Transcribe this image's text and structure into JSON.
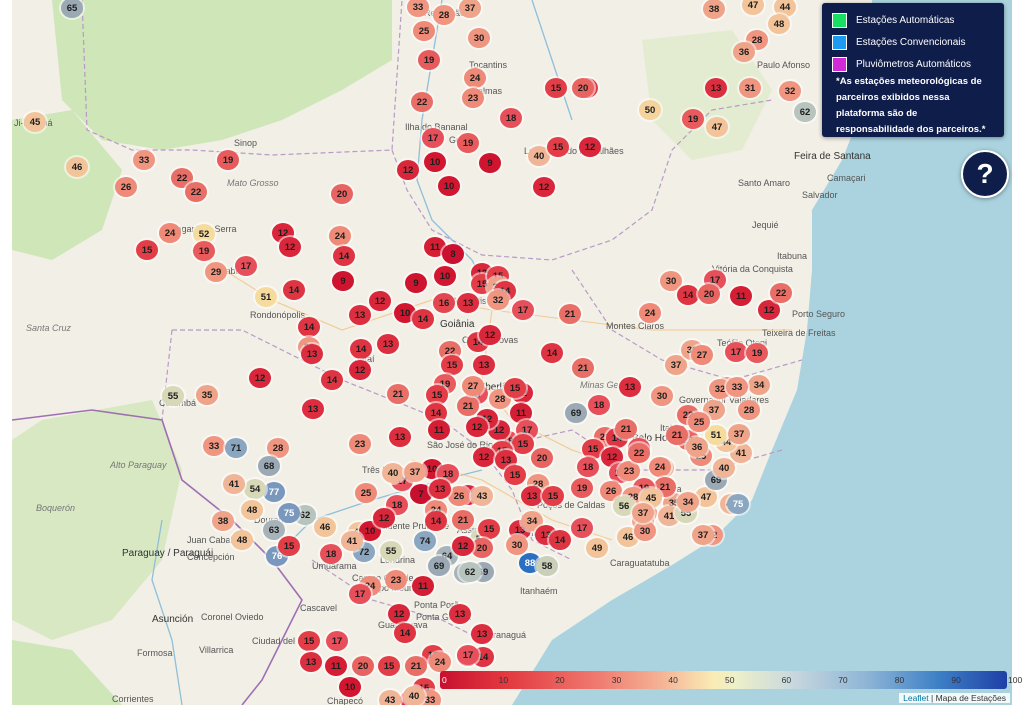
{
  "legend": {
    "items": [
      {
        "label": "Estações Automáticas",
        "color": "#19e062"
      },
      {
        "label": "Estações Convencionais",
        "color": "#1c9bf0"
      },
      {
        "label": "Pluviômetros Automáticos",
        "color": "#d02bd6"
      }
    ],
    "note": "*As estações meteorológicas de parceiros exibidos nessa plataforma são de responsabilidade dos parceiros.*"
  },
  "help_button": {
    "label": "?"
  },
  "color_scale": {
    "ticks": [
      "0",
      "10",
      "20",
      "30",
      "40",
      "50",
      "60",
      "70",
      "80",
      "90",
      "100"
    ]
  },
  "attribution": {
    "leaflet": "Leaflet",
    "separator": " | ",
    "source": "Mapa de Estações"
  },
  "places": [
    "Ji-Paraná",
    "Sinop",
    "Tangará da Serra",
    "Cuiabá",
    "Rondonópolis",
    "Santa Cruz",
    "Corumbá",
    "Alto Paraguay",
    "Boquerón",
    "Paraguay / Paraguái",
    "Concepción",
    "Asunción",
    "Coronel Oviedo",
    "Formosa",
    "Villarrica",
    "Ciudad del Este",
    "Corrientes",
    "Ilha do Bananal",
    "Gurupi",
    "Palmas",
    "Luis Eduardo Magalhães",
    "Feira de Santana",
    "Salvador",
    "Santo Amaro",
    "Camaçari",
    "Jequié",
    "Itabuna",
    "Vitória da Conquista",
    "Montes Claros",
    "Teófilo Otoni",
    "Teixeira de Freitas",
    "Porto Seguro",
    "Governador Valadares",
    "Itabira",
    "Belo Horizonte",
    "Goiânia",
    "Anápolis",
    "Caldas Novas",
    "Uberlândia",
    "Jataí",
    "São José do Rio Preto",
    "Campo Grande",
    "Três Lagoas",
    "Dourados",
    "Ponta Porã",
    "Juan Caballero",
    "Umuarama",
    "Campo Mourão",
    "Cascavel",
    "Guarapuava",
    "Ponta Grossa",
    "Paranaguá",
    "Assis",
    "Londrina",
    "Presidente Prudente",
    "Poços de Caldas",
    "Campinas",
    "Caraguatatuba",
    "Itanhaém",
    "Juiz de Fora",
    "Chapecó",
    "Tocantins",
    "Redenção",
    "Paulo Afonso",
    "Mato Grosso",
    "Minas Gerais"
  ],
  "markers": [
    {
      "v": 65,
      "c": "#9aa9b4"
    },
    {
      "v": 33,
      "c": "#ef9580"
    },
    {
      "v": 28,
      "c": "#ef9580"
    },
    {
      "v": 37,
      "c": "#efa489"
    },
    {
      "v": 25,
      "c": "#ee8a77"
    },
    {
      "v": 30,
      "c": "#ef9580"
    },
    {
      "v": 19,
      "c": "#e85a5c"
    },
    {
      "v": 24,
      "c": "#ee8a77"
    },
    {
      "v": 23,
      "c": "#ee8a77"
    },
    {
      "v": 22,
      "c": "#e86e66"
    },
    {
      "v": 15,
      "c": "#e33e47"
    },
    {
      "v": 18,
      "c": "#e7505a"
    },
    {
      "v": 17,
      "c": "#e7505a"
    },
    {
      "v": 19,
      "c": "#e85a5c"
    },
    {
      "v": 12,
      "c": "#d9263a"
    },
    {
      "v": 10,
      "c": "#d2162f"
    },
    {
      "v": 9,
      "c": "#cf1430"
    },
    {
      "v": 10,
      "c": "#d2162f"
    },
    {
      "v": 40,
      "c": "#f0b596"
    },
    {
      "v": 15,
      "c": "#e33e47"
    },
    {
      "v": 12,
      "c": "#d9263a"
    },
    {
      "v": 12,
      "c": "#d9263a"
    },
    {
      "v": 15,
      "c": "#e33e47"
    },
    {
      "v": 20,
      "c": "#e86460"
    },
    {
      "v": 13,
      "c": "#dd2e3f"
    },
    {
      "v": 31,
      "c": "#ef9580"
    },
    {
      "v": 32,
      "c": "#ef9580"
    },
    {
      "v": 50,
      "c": "#f5d39c"
    },
    {
      "v": 19,
      "c": "#e85a5c"
    },
    {
      "v": 47,
      "c": "#f3c49a"
    },
    {
      "v": 38,
      "c": "#efa489"
    },
    {
      "v": 47,
      "c": "#f3c49a"
    },
    {
      "v": 44,
      "c": "#f3c49a"
    },
    {
      "v": 48,
      "c": "#f3c49a"
    },
    {
      "v": 28,
      "c": "#ef9580"
    },
    {
      "v": 36,
      "c": "#efa489"
    },
    {
      "v": 62,
      "c": "#b7c3bd"
    },
    {
      "v": 45,
      "c": "#f3c49a"
    },
    {
      "v": 46,
      "c": "#f3c49a"
    },
    {
      "v": 33,
      "c": "#ef9580"
    },
    {
      "v": 22,
      "c": "#e86e66"
    },
    {
      "v": 22,
      "c": "#e86e66"
    },
    {
      "v": 26,
      "c": "#ee8a77"
    },
    {
      "v": 19,
      "c": "#e85a5c"
    },
    {
      "v": 20,
      "c": "#e86460"
    },
    {
      "v": 24,
      "c": "#ee8a77"
    },
    {
      "v": 52,
      "c": "#f5dc9e"
    },
    {
      "v": 15,
      "c": "#e33e47"
    },
    {
      "v": 19,
      "c": "#e85a5c"
    },
    {
      "v": 29,
      "c": "#ef9580"
    },
    {
      "v": 17,
      "c": "#e7505a"
    },
    {
      "v": 12,
      "c": "#d9263a"
    },
    {
      "v": 12,
      "c": "#d9263a"
    },
    {
      "v": 14,
      "c": "#df3442"
    },
    {
      "v": 24,
      "c": "#ee8a77"
    },
    {
      "v": 51,
      "c": "#f5dc9e"
    },
    {
      "v": 14,
      "c": "#df3442"
    },
    {
      "v": 9,
      "c": "#cf1430"
    },
    {
      "v": 11,
      "c": "#d51d34"
    },
    {
      "v": 8,
      "c": "#cc1030"
    },
    {
      "v": 12,
      "c": "#d9263a"
    },
    {
      "v": 9,
      "c": "#cf1430"
    },
    {
      "v": 10,
      "c": "#d2162f"
    },
    {
      "v": 13,
      "c": "#dd2e3f"
    },
    {
      "v": 16,
      "c": "#e4464f"
    },
    {
      "v": 13,
      "c": "#dd2e3f"
    },
    {
      "v": 12,
      "c": "#d9263a"
    },
    {
      "v": 10,
      "c": "#d2162f"
    },
    {
      "v": 15,
      "c": "#e33e47"
    },
    {
      "v": 15,
      "c": "#e33e47"
    },
    {
      "v": 36,
      "c": "#efa489"
    },
    {
      "v": 14,
      "c": "#df3442"
    },
    {
      "v": 14,
      "c": "#df3442"
    },
    {
      "v": 13,
      "c": "#dd2e3f"
    },
    {
      "v": 32,
      "c": "#ef9580"
    },
    {
      "v": 17,
      "c": "#e7505a"
    },
    {
      "v": 14,
      "c": "#df3442"
    },
    {
      "v": 14,
      "c": "#df3442"
    },
    {
      "v": 14,
      "c": "#df3442"
    },
    {
      "v": 12,
      "c": "#d9263a"
    },
    {
      "v": 22,
      "c": "#e86e66"
    },
    {
      "v": 15,
      "c": "#e33e47"
    },
    {
      "v": 28,
      "c": "#ef9580"
    },
    {
      "v": 19,
      "c": "#e85a5c"
    },
    {
      "v": 13,
      "c": "#dd2e3f"
    },
    {
      "v": 12,
      "c": "#d9263a"
    },
    {
      "v": 13,
      "c": "#dd2e3f"
    },
    {
      "v": 17,
      "c": "#e7505a"
    },
    {
      "v": 21,
      "c": "#e86e66"
    },
    {
      "v": 12,
      "c": "#d9263a"
    },
    {
      "v": 14,
      "c": "#df3442"
    },
    {
      "v": 21,
      "c": "#e86e66"
    },
    {
      "v": 15,
      "c": "#e33e47"
    },
    {
      "v": 14,
      "c": "#df3442"
    },
    {
      "v": 27,
      "c": "#ee8a77"
    },
    {
      "v": 28,
      "c": "#ef9580"
    },
    {
      "v": 15,
      "c": "#e33e47"
    },
    {
      "v": 11,
      "c": "#d51d34"
    },
    {
      "v": 18,
      "c": "#e7505a"
    },
    {
      "v": 12,
      "c": "#d9263a"
    },
    {
      "v": 13,
      "c": "#dd2e3f"
    },
    {
      "v": 12,
      "c": "#d9263a"
    },
    {
      "v": 12,
      "c": "#d9263a"
    },
    {
      "v": 17,
      "c": "#e7505a"
    },
    {
      "v": 15,
      "c": "#e33e47"
    },
    {
      "v": 15,
      "c": "#e33e47"
    },
    {
      "v": 11,
      "c": "#d51d34"
    },
    {
      "v": 12,
      "c": "#d9263a"
    },
    {
      "v": 23,
      "c": "#ee8a77"
    },
    {
      "v": 13,
      "c": "#dd2e3f"
    },
    {
      "v": 12,
      "c": "#d9263a"
    },
    {
      "v": 13,
      "c": "#dd2e3f"
    },
    {
      "v": 12,
      "c": "#d9263a"
    },
    {
      "v": 15,
      "c": "#e33e47"
    },
    {
      "v": 10,
      "c": "#d2162f"
    },
    {
      "v": 17,
      "c": "#e7505a"
    },
    {
      "v": 18,
      "c": "#e7505a"
    },
    {
      "v": 7,
      "c": "#c80f2d"
    },
    {
      "v": 24,
      "c": "#ee8a77"
    },
    {
      "v": 26,
      "c": "#ee8a77"
    },
    {
      "v": 43,
      "c": "#f0b596"
    },
    {
      "v": 74,
      "c": "#8aa6c0"
    },
    {
      "v": 64,
      "c": "#a6b3b8"
    },
    {
      "v": 63,
      "c": "#a6b3b8"
    },
    {
      "v": 69,
      "c": "#9aa9b4"
    },
    {
      "v": 88,
      "c": "#2a6fc0"
    },
    {
      "v": 58,
      "c": "#c9cfb9"
    },
    {
      "v": 49,
      "c": "#f3c49a"
    },
    {
      "v": 46,
      "c": "#f3c49a"
    },
    {
      "v": 35,
      "c": "#efa489"
    },
    {
      "v": 32,
      "c": "#ef9580"
    },
    {
      "v": 42,
      "c": "#f0b596"
    },
    {
      "v": 47,
      "c": "#f3c49a"
    },
    {
      "v": 75,
      "c": "#8aa6c0"
    },
    {
      "v": 69,
      "c": "#9aa9b4"
    },
    {
      "v": 41,
      "c": "#f0b596"
    },
    {
      "v": 44,
      "c": "#f3c49a"
    },
    {
      "v": 51,
      "c": "#f5dc9e"
    },
    {
      "v": 37,
      "c": "#efa489"
    },
    {
      "v": 28,
      "c": "#ef9580"
    },
    {
      "v": 34,
      "c": "#efa489"
    },
    {
      "v": 29,
      "c": "#ef9580"
    },
    {
      "v": 32,
      "c": "#ef9580"
    },
    {
      "v": 30,
      "c": "#ef9580"
    },
    {
      "v": 22,
      "c": "#e86e66"
    },
    {
      "v": 20,
      "c": "#e86460"
    },
    {
      "v": 25,
      "c": "#ee8a77"
    },
    {
      "v": 41,
      "c": "#f0b596"
    },
    {
      "v": 25,
      "c": "#ee8a77"
    },
    {
      "v": 40,
      "c": "#f0b596"
    },
    {
      "v": 37,
      "c": "#efa489"
    },
    {
      "v": 36,
      "c": "#efa489"
    },
    {
      "v": 33,
      "c": "#ef9580"
    },
    {
      "v": 37,
      "c": "#efa489"
    },
    {
      "v": 39,
      "c": "#efa489"
    },
    {
      "v": 27,
      "c": "#ee8a77"
    },
    {
      "v": 30,
      "c": "#ef9580"
    },
    {
      "v": 14,
      "c": "#df3442"
    },
    {
      "v": 17,
      "c": "#e7505a"
    },
    {
      "v": 11,
      "c": "#d51d34"
    },
    {
      "v": 12,
      "c": "#d9263a"
    },
    {
      "v": 17,
      "c": "#e7505a"
    },
    {
      "v": 22,
      "c": "#e86e66"
    },
    {
      "v": 20,
      "c": "#e86460"
    },
    {
      "v": 19,
      "c": "#e85a5c"
    },
    {
      "v": 24,
      "c": "#ee8a77"
    },
    {
      "v": 21,
      "c": "#e86e66"
    },
    {
      "v": 14,
      "c": "#df3442"
    },
    {
      "v": 21,
      "c": "#e86e66"
    },
    {
      "v": 13,
      "c": "#dd2e3f"
    },
    {
      "v": 18,
      "c": "#e7505a"
    },
    {
      "v": 69,
      "c": "#9aa9b4"
    },
    {
      "v": 21,
      "c": "#e86e66"
    },
    {
      "v": 14,
      "c": "#df3442"
    },
    {
      "v": 15,
      "c": "#e33e47"
    },
    {
      "v": 17,
      "c": "#e7505a"
    },
    {
      "v": 21,
      "c": "#e86e66"
    },
    {
      "v": 12,
      "c": "#d9263a"
    },
    {
      "v": 28,
      "c": "#ef9580"
    },
    {
      "v": 19,
      "c": "#e85a5c"
    },
    {
      "v": 20,
      "c": "#e86460"
    },
    {
      "v": 21,
      "c": "#e86e66"
    },
    {
      "v": 18,
      "c": "#e7505a"
    },
    {
      "v": 18,
      "c": "#e7505a"
    },
    {
      "v": 24,
      "c": "#ee8a77"
    },
    {
      "v": 23,
      "c": "#ee8a77"
    },
    {
      "v": 22,
      "c": "#e86e66"
    },
    {
      "v": 21,
      "c": "#e86e66"
    },
    {
      "v": 19,
      "c": "#e85a5c"
    },
    {
      "v": 26,
      "c": "#ee8a77"
    },
    {
      "v": 28,
      "c": "#ef9580"
    },
    {
      "v": 24,
      "c": "#ee8a77"
    },
    {
      "v": 45,
      "c": "#f3c49a"
    },
    {
      "v": 39,
      "c": "#efa489"
    },
    {
      "v": 41,
      "c": "#f0b596"
    },
    {
      "v": 30,
      "c": "#ef9580"
    },
    {
      "v": 56,
      "c": "#d6d8b7"
    },
    {
      "v": 55,
      "c": "#d6d8b7"
    },
    {
      "v": 37,
      "c": "#efa489"
    },
    {
      "v": 34,
      "c": "#efa489"
    },
    {
      "v": 37,
      "c": "#efa489"
    },
    {
      "v": 35,
      "c": "#efa489"
    },
    {
      "v": 55,
      "c": "#d6d8b7"
    },
    {
      "v": 33,
      "c": "#ef9580"
    },
    {
      "v": 71,
      "c": "#8aa6c0"
    },
    {
      "v": 28,
      "c": "#ef9580"
    },
    {
      "v": 68,
      "c": "#9aa9b4"
    },
    {
      "v": 77,
      "c": "#7a98bd"
    },
    {
      "v": 54,
      "c": "#d6d8b7"
    },
    {
      "v": 41,
      "c": "#f0b596"
    },
    {
      "v": 63,
      "c": "#a6b3b8"
    },
    {
      "v": 62,
      "c": "#b7c3bd"
    },
    {
      "v": 46,
      "c": "#f3c49a"
    },
    {
      "v": 47,
      "c": "#f3c49a"
    },
    {
      "v": 72,
      "c": "#8aa6c0"
    },
    {
      "v": 55,
      "c": "#d6d8b7"
    },
    {
      "v": 76,
      "c": "#7a98bd"
    },
    {
      "v": 75,
      "c": "#7a98bd"
    },
    {
      "v": 48,
      "c": "#f3c49a"
    },
    {
      "v": 38,
      "c": "#efa489"
    },
    {
      "v": 48,
      "c": "#f3c49a"
    },
    {
      "v": 15,
      "c": "#e33e47"
    },
    {
      "v": 18,
      "c": "#e7505a"
    },
    {
      "v": 10,
      "c": "#d2162f"
    },
    {
      "v": 24,
      "c": "#ee8a77"
    },
    {
      "v": 17,
      "c": "#e7505a"
    },
    {
      "v": 11,
      "c": "#d51d34"
    },
    {
      "v": 12,
      "c": "#d9263a"
    },
    {
      "v": 14,
      "c": "#df3442"
    },
    {
      "v": 15,
      "c": "#e33e47"
    },
    {
      "v": 13,
      "c": "#dd2e3f"
    },
    {
      "v": 13,
      "c": "#dd2e3f"
    },
    {
      "v": 12,
      "c": "#d9263a"
    },
    {
      "v": 14,
      "c": "#df3442"
    },
    {
      "v": 15,
      "c": "#e33e47"
    },
    {
      "v": 17,
      "c": "#e7505a"
    },
    {
      "v": 13,
      "c": "#dd2e3f"
    },
    {
      "v": 11,
      "c": "#d51d34"
    },
    {
      "v": 20,
      "c": "#e86460"
    },
    {
      "v": 15,
      "c": "#e33e47"
    },
    {
      "v": 21,
      "c": "#e86e66"
    },
    {
      "v": 24,
      "c": "#ee8a77"
    },
    {
      "v": 17,
      "c": "#e7505a"
    },
    {
      "v": 10,
      "c": "#d2162f"
    },
    {
      "v": 15,
      "c": "#e33e47"
    },
    {
      "v": 13,
      "c": "#dd2e3f"
    },
    {
      "v": 33,
      "c": "#ef9580"
    },
    {
      "v": 43,
      "c": "#f0b596"
    },
    {
      "v": 40,
      "c": "#f0b596"
    },
    {
      "v": 62,
      "c": "#b7c3bd"
    },
    {
      "v": 54,
      "c": "#d6d8b7"
    },
    {
      "v": 69,
      "c": "#9aa9b4"
    },
    {
      "v": 23,
      "c": "#ee8a77"
    },
    {
      "v": 41,
      "c": "#f0b596"
    },
    {
      "v": 25,
      "c": "#ee8a77"
    },
    {
      "v": 40,
      "c": "#f0b596"
    },
    {
      "v": 37,
      "c": "#efa489"
    },
    {
      "v": 13,
      "c": "#dd2e3f"
    },
    {
      "v": 18,
      "c": "#e7505a"
    },
    {
      "v": 12,
      "c": "#d9263a"
    },
    {
      "v": 14,
      "c": "#df3442"
    },
    {
      "v": 21,
      "c": "#e86e66"
    },
    {
      "v": 15,
      "c": "#e33e47"
    },
    {
      "v": 13,
      "c": "#dd2e3f"
    },
    {
      "v": 34,
      "c": "#efa489"
    },
    {
      "v": 13,
      "c": "#dd2e3f"
    },
    {
      "v": 17,
      "c": "#e7505a"
    },
    {
      "v": 14,
      "c": "#df3442"
    },
    {
      "v": 30,
      "c": "#ef9580"
    },
    {
      "v": 20,
      "c": "#e86460"
    },
    {
      "v": 12,
      "c": "#d9263a"
    },
    {
      "v": 13,
      "c": "#dd2e3f"
    },
    {
      "v": 15,
      "c": "#e33e47"
    }
  ]
}
